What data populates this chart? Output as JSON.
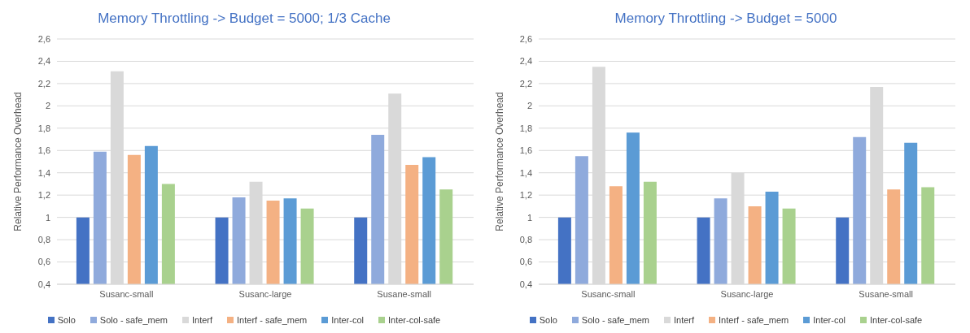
{
  "chart_data": [
    {
      "type": "bar",
      "title": "Memory Throttling -> Budget = 5000; 1/3 Cache",
      "ylabel": "Relative Performance Overhead",
      "categories": [
        "Susanc-small",
        "Susanc-large",
        "Susane-small"
      ],
      "series": [
        {
          "name": "Solo",
          "color": "#4472c4",
          "values": [
            1,
            1,
            1
          ]
        },
        {
          "name": "Solo - safe_mem",
          "color": "#8faadc",
          "values": [
            1.59,
            1.18,
            1.74
          ]
        },
        {
          "name": "Interf",
          "color": "#d9d9d9",
          "values": [
            2.31,
            1.32,
            2.11
          ]
        },
        {
          "name": "Interf - safe_mem",
          "color": "#f4b183",
          "values": [
            1.56,
            1.15,
            1.47
          ]
        },
        {
          "name": "Inter-col",
          "color": "#5b9bd5",
          "values": [
            1.64,
            1.17,
            1.54
          ]
        },
        {
          "name": "Inter-col-safe",
          "color": "#a9d18e",
          "values": [
            1.3,
            1.08,
            1.25
          ]
        }
      ],
      "ylim": [
        0.4,
        2.6
      ],
      "yticks": [
        {
          "value": 0.4,
          "label": "0,4"
        },
        {
          "value": 0.6,
          "label": "0,6"
        },
        {
          "value": 0.8,
          "label": "0,8"
        },
        {
          "value": 1,
          "label": "1"
        },
        {
          "value": 1.2,
          "label": "1,2"
        },
        {
          "value": 1.4,
          "label": "1,4"
        },
        {
          "value": 1.6,
          "label": "1,6"
        },
        {
          "value": 1.8,
          "label": "1,8"
        },
        {
          "value": 2,
          "label": "2"
        },
        {
          "value": 2.2,
          "label": "2,2"
        },
        {
          "value": 2.4,
          "label": "2,4"
        },
        {
          "value": 2.6,
          "label": "2,6"
        }
      ],
      "grid": "y",
      "legend": "bottom"
    },
    {
      "type": "bar",
      "title": "Memory Throttling -> Budget = 5000",
      "ylabel": "Relative Performance Overhead",
      "categories": [
        "Susanc-small",
        "Susanc-large",
        "Susane-small"
      ],
      "series": [
        {
          "name": "Solo",
          "color": "#4472c4",
          "values": [
            1,
            1,
            1
          ]
        },
        {
          "name": "Solo - safe_mem",
          "color": "#8faadc",
          "values": [
            1.55,
            1.17,
            1.72
          ]
        },
        {
          "name": "Interf",
          "color": "#d9d9d9",
          "values": [
            2.35,
            1.4,
            2.17
          ]
        },
        {
          "name": "Interf - safe_mem",
          "color": "#f4b183",
          "values": [
            1.28,
            1.1,
            1.25
          ]
        },
        {
          "name": "Inter-col",
          "color": "#5b9bd5",
          "values": [
            1.76,
            1.23,
            1.67
          ]
        },
        {
          "name": "Inter-col-safe",
          "color": "#a9d18e",
          "values": [
            1.32,
            1.08,
            1.27
          ]
        }
      ],
      "ylim": [
        0.4,
        2.6
      ],
      "yticks": [
        {
          "value": 0.4,
          "label": "0,4"
        },
        {
          "value": 0.6,
          "label": "0,6"
        },
        {
          "value": 0.8,
          "label": "0,8"
        },
        {
          "value": 1,
          "label": "1"
        },
        {
          "value": 1.2,
          "label": "1,2"
        },
        {
          "value": 1.4,
          "label": "1,4"
        },
        {
          "value": 1.6,
          "label": "1,6"
        },
        {
          "value": 1.8,
          "label": "1,8"
        },
        {
          "value": 2,
          "label": "2"
        },
        {
          "value": 2.2,
          "label": "2,2"
        },
        {
          "value": 2.4,
          "label": "2,4"
        },
        {
          "value": 2.6,
          "label": "2,6"
        }
      ],
      "grid": "y",
      "legend": "bottom"
    }
  ]
}
